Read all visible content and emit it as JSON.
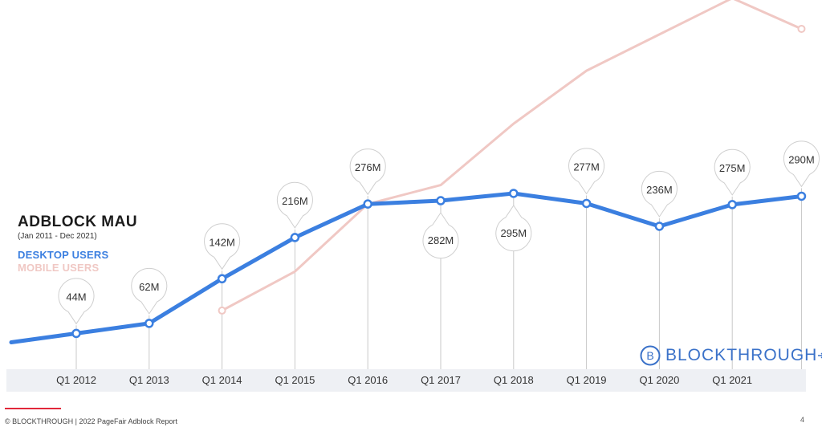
{
  "legend": {
    "title": "ADBLOCK MAU",
    "subtitle": "(Jan 2011 - Dec 2021)",
    "desktop_label": "DESKTOP USERS",
    "mobile_label": "MOBILE USERS"
  },
  "logo": {
    "text": "BLOCKTHROUGH",
    "icon": "b-circle-logo-icon"
  },
  "footer": {
    "text": "© BLOCKTHROUGH | 2022 PageFair Adblock Report",
    "page_number": "4"
  },
  "colors": {
    "desktop": "#3b7fe0",
    "mobile": "#f0c8c4",
    "axis_band": "#eef0f4",
    "accent_line": "#e2283a"
  },
  "chart_data": {
    "type": "line",
    "title": "ADBLOCK MAU",
    "subtitle": "(Jan 2011 - Dec 2021)",
    "x_tick_labels": [
      "Q1 2012",
      "Q1 2013",
      "Q1 2014",
      "Q1 2015",
      "Q1 2016",
      "Q1 2017",
      "Q1 2018",
      "Q1 2019",
      "Q1 2020",
      "Q1 2021"
    ],
    "grid": false,
    "legend_position": "left",
    "series": [
      {
        "name": "DESKTOP USERS",
        "points": [
          {
            "x": 2011.0,
            "y": 28
          },
          {
            "x": 2012.0,
            "y": 44,
            "label": "44M"
          },
          {
            "x": 2013.0,
            "y": 62,
            "label": "62M"
          },
          {
            "x": 2014.0,
            "y": 142,
            "label": "142M"
          },
          {
            "x": 2015.0,
            "y": 216,
            "label": "216M"
          },
          {
            "x": 2016.0,
            "y": 276,
            "label": "276M"
          },
          {
            "x": 2017.0,
            "y": 282,
            "label": "282M"
          },
          {
            "x": 2018.0,
            "y": 295,
            "label": "295M"
          },
          {
            "x": 2019.0,
            "y": 277,
            "label": "277M"
          },
          {
            "x": 2020.0,
            "y": 236,
            "label": "236M"
          },
          {
            "x": 2021.0,
            "y": 275,
            "label": "275M"
          },
          {
            "x": 2021.95,
            "y": 290,
            "label": "290M"
          }
        ]
      },
      {
        "name": "MOBILE USERS",
        "points": [
          {
            "x": 2014.0,
            "y": 85
          },
          {
            "x": 2015.0,
            "y": 155
          },
          {
            "x": 2016.0,
            "y": 276
          },
          {
            "x": 2017.0,
            "y": 310
          },
          {
            "x": 2018.0,
            "y": 420
          },
          {
            "x": 2019.0,
            "y": 515
          },
          {
            "x": 2020.0,
            "y": 580
          },
          {
            "x": 2021.0,
            "y": 645
          },
          {
            "x": 2021.95,
            "y": 590
          }
        ]
      }
    ],
    "x_range": [
      2010.85,
      2022.15
    ],
    "y_range": [
      0,
      680
    ]
  }
}
